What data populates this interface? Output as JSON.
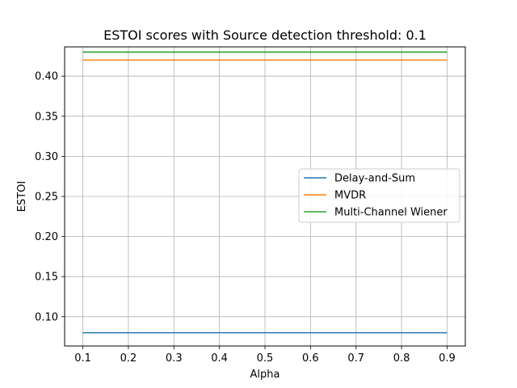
{
  "chart_data": {
    "type": "line",
    "title": "ESTOI scores with Source detection threshold: 0.1",
    "xlabel": "Alpha",
    "ylabel": "ESTOI",
    "xlim": [
      0.06,
      0.94
    ],
    "ylim": [
      0.0635,
      0.4365
    ],
    "x": [
      0.1,
      0.2,
      0.3,
      0.4,
      0.5,
      0.6,
      0.7,
      0.8,
      0.9
    ],
    "xticks": [
      "0.1",
      "0.2",
      "0.3",
      "0.4",
      "0.5",
      "0.6",
      "0.7",
      "0.8",
      "0.9"
    ],
    "yticks": [
      "0.10",
      "0.15",
      "0.20",
      "0.25",
      "0.30",
      "0.35",
      "0.40"
    ],
    "grid": true,
    "legend_position": "center-right",
    "series": [
      {
        "name": "Delay-and-Sum",
        "color": "#1f77b4",
        "values": [
          0.08,
          0.08,
          0.08,
          0.08,
          0.08,
          0.08,
          0.08,
          0.08,
          0.08
        ]
      },
      {
        "name": "MVDR",
        "color": "#ff7f0e",
        "values": [
          0.42,
          0.42,
          0.42,
          0.42,
          0.42,
          0.42,
          0.42,
          0.42,
          0.42
        ]
      },
      {
        "name": "Multi-Channel Wiener",
        "color": "#2ca02c",
        "values": [
          0.43,
          0.43,
          0.43,
          0.43,
          0.43,
          0.43,
          0.43,
          0.43,
          0.43
        ]
      }
    ]
  }
}
